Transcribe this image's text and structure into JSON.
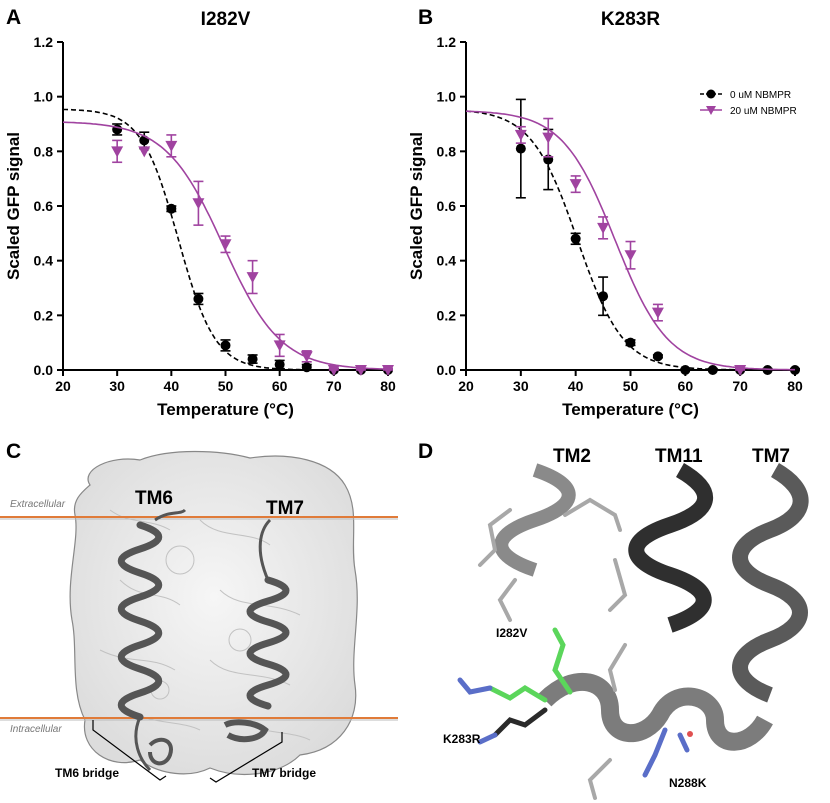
{
  "panels": {
    "a": {
      "letter": "A"
    },
    "b": {
      "letter": "B"
    },
    "c": {
      "letter": "C",
      "tm6": "TM6",
      "tm7": "TM7",
      "extracellular": "Extracellular",
      "intracellular": "Intracellular",
      "tm6_bridge": "TM6 bridge",
      "tm7_bridge": "TM7 bridge"
    },
    "d": {
      "letter": "D",
      "tm2": "TM2",
      "tm11": "TM11",
      "tm7": "TM7",
      "i282v": "I282V",
      "k283r": "K283R",
      "n288k": "N288K"
    }
  },
  "colors": {
    "control": "#000000",
    "drug": "#a043a0",
    "mutant_green": "#5bd65b",
    "nitrogen_blue": "#5a6ec8",
    "helix_gray": "#7a7a7a",
    "helix_dark": "#333333"
  },
  "chart_data": [
    {
      "type": "scatter",
      "title": "I282V",
      "xlabel": "Temperature (°C)",
      "ylabel": "Scaled GFP signal",
      "xlim": [
        20,
        80
      ],
      "ylim": [
        0,
        1.2
      ],
      "xticks": [
        "20",
        "30",
        "40",
        "50",
        "60",
        "70",
        "80"
      ],
      "yticks": [
        "0.0",
        "0.2",
        "0.4",
        "0.6",
        "0.8",
        "1.0",
        "1.2"
      ],
      "grid": false,
      "legend": "none",
      "series": [
        {
          "name": "0 uM NBMPR",
          "color": "#000000",
          "marker": "circle",
          "line": "dashed",
          "x": [
            30,
            35,
            40,
            45,
            50,
            55,
            60,
            65,
            70,
            75,
            80
          ],
          "y": [
            0.88,
            0.84,
            0.59,
            0.26,
            0.09,
            0.04,
            0.02,
            0.01,
            0.0,
            0.0,
            0.0
          ],
          "err": [
            0.02,
            0.03,
            0.01,
            0.02,
            0.02,
            0.015,
            0.015,
            0.01,
            0.005,
            0.005,
            0.005
          ],
          "fit": {
            "top": 0.955,
            "bottom": 0.0,
            "tm": 41.3,
            "slope": 3.4
          }
        },
        {
          "name": "20 uM NBMPR",
          "color": "#a043a0",
          "marker": "triangle-down",
          "line": "solid",
          "x": [
            30,
            35,
            40,
            45,
            50,
            55,
            60,
            65,
            70,
            75,
            80
          ],
          "y": [
            0.8,
            0.8,
            0.82,
            0.61,
            0.46,
            0.34,
            0.09,
            0.05,
            0.0,
            0.0,
            0.0
          ],
          "err": [
            0.04,
            0.0,
            0.04,
            0.08,
            0.03,
            0.06,
            0.04,
            0.02,
            0.005,
            0.005,
            0.005
          ],
          "fit": {
            "top": 0.91,
            "bottom": 0.0,
            "tm": 49.6,
            "slope": 5.3
          }
        }
      ]
    },
    {
      "type": "scatter",
      "title": "K283R",
      "xlabel": "Temperature (°C)",
      "ylabel": "Scaled GFP signal",
      "xlim": [
        20,
        80
      ],
      "ylim": [
        0,
        1.2
      ],
      "xticks": [
        "20",
        "30",
        "40",
        "50",
        "60",
        "70",
        "80"
      ],
      "yticks": [
        "0.0",
        "0.2",
        "0.4",
        "0.6",
        "0.8",
        "1.0",
        "1.2"
      ],
      "grid": false,
      "legend": "top-right",
      "series": [
        {
          "name": "0 uM NBMPR",
          "color": "#000000",
          "marker": "circle",
          "line": "dashed",
          "x": [
            30,
            35,
            40,
            45,
            50,
            55,
            60,
            65,
            70,
            75,
            80
          ],
          "y": [
            0.81,
            0.77,
            0.48,
            0.27,
            0.1,
            0.05,
            0.0,
            0.0,
            0.0,
            0.0,
            0.0
          ],
          "err": [
            0.18,
            0.11,
            0.02,
            0.07,
            0.01,
            0.005,
            0.005,
            0.005,
            0.005,
            0.005,
            0.005
          ],
          "fit": {
            "top": 0.955,
            "bottom": 0.0,
            "tm": 40.3,
            "slope": 4.2
          }
        },
        {
          "name": "20 uM NBMPR",
          "color": "#a043a0",
          "marker": "triangle-down",
          "line": "solid",
          "x": [
            30,
            35,
            40,
            45,
            50,
            55,
            70
          ],
          "y": [
            0.86,
            0.85,
            0.68,
            0.52,
            0.42,
            0.21,
            0.0
          ],
          "err": [
            0.03,
            0.07,
            0.03,
            0.04,
            0.05,
            0.03,
            0.005
          ],
          "fit": {
            "top": 0.95,
            "bottom": 0.0,
            "tm": 47.2,
            "slope": 4.8
          }
        }
      ]
    }
  ]
}
